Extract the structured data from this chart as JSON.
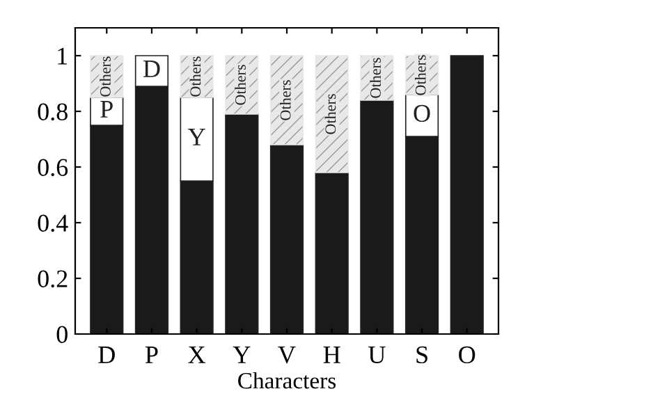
{
  "chart_data": {
    "type": "bar",
    "stacked": true,
    "xlabel": "Characters",
    "categories": [
      "D",
      "P",
      "X",
      "Y",
      "V",
      "H",
      "U",
      "S",
      "O"
    ],
    "series": [
      {
        "color": "#1a1a1a",
        "values": [
          0.75,
          0.89,
          0.55,
          0.79,
          0.68,
          0.58,
          0.84,
          0.71,
          1.0
        ]
      },
      {
        "color": "#ffffff",
        "values": [
          0.1,
          0.11,
          0.3,
          null,
          null,
          null,
          null,
          0.15,
          null
        ],
        "value_labels": [
          "P",
          "D",
          "Y",
          null,
          null,
          null,
          null,
          "O",
          null
        ]
      },
      {
        "color": "#e8e8e8",
        "values": [
          0.15,
          null,
          0.15,
          0.21,
          0.32,
          0.42,
          0.16,
          0.14,
          null
        ],
        "value_labels": [
          "Others",
          null,
          "Others",
          "Others",
          "Others",
          "Others",
          "Others",
          "Others",
          null
        ]
      }
    ],
    "ylim": [
      0,
      1.1
    ],
    "yticks": [
      0,
      0.2,
      0.4,
      0.6,
      0.8,
      1
    ],
    "grid": false,
    "legend": false
  }
}
